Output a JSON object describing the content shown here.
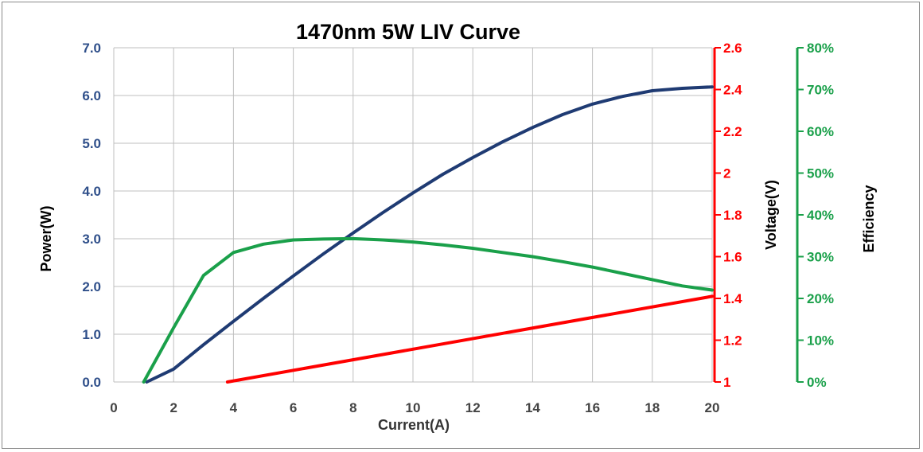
{
  "chart_data": {
    "type": "line",
    "title": "1470nm 5W LIV Curve",
    "xlabel": "Current(A)",
    "xlim": [
      0,
      20
    ],
    "xticks": [
      0,
      2,
      4,
      6,
      8,
      10,
      12,
      14,
      16,
      18,
      20
    ],
    "grid": true,
    "axes": {
      "left": {
        "label": "Power(W)",
        "ylim": [
          0,
          7
        ],
        "ticks": [
          "0.0",
          "1.0",
          "2.0",
          "3.0",
          "4.0",
          "5.0",
          "6.0",
          "7.0"
        ],
        "color": "#2f4f8a"
      },
      "right1": {
        "label": "Voltage(V)",
        "ylim": [
          1,
          2.6
        ],
        "ticks": [
          "1",
          "1.2",
          "1.4",
          "1.6",
          "1.8",
          "2",
          "2.2",
          "2.4",
          "2.6"
        ],
        "color": "#ff0000"
      },
      "right2": {
        "label": "Efficiency",
        "ylim": [
          0,
          80
        ],
        "ticks": [
          "0%",
          "10%",
          "20%",
          "30%",
          "40%",
          "50%",
          "60%",
          "70%",
          "80%"
        ],
        "color": "#1aa04a"
      }
    },
    "series": [
      {
        "axis": "left",
        "color": "#1f3b73",
        "x": [
          1.1,
          2,
          3,
          4,
          5,
          6,
          7,
          8,
          9,
          10,
          11,
          12,
          13,
          14,
          15,
          16,
          17,
          18,
          19,
          20
        ],
        "y": [
          0.0,
          0.27,
          0.78,
          1.27,
          1.75,
          2.22,
          2.68,
          3.12,
          3.55,
          3.96,
          4.35,
          4.7,
          5.03,
          5.33,
          5.6,
          5.82,
          5.98,
          6.1,
          6.15,
          6.18
        ]
      },
      {
        "axis": "right1",
        "color": "#ff0000",
        "x": [
          3.8,
          20
        ],
        "y": [
          1.0,
          1.41
        ]
      },
      {
        "axis": "right2",
        "color": "#1aa04a",
        "x": [
          1,
          2,
          3,
          4,
          5,
          6,
          7,
          8,
          9,
          10,
          11,
          12,
          13,
          14,
          15,
          16,
          17,
          18,
          19,
          20
        ],
        "y": [
          0,
          13,
          25.5,
          31,
          33,
          34,
          34.2,
          34.3,
          34,
          33.5,
          32.8,
          32,
          31,
          30,
          28.8,
          27.5,
          26,
          24.5,
          23,
          22
        ]
      }
    ]
  }
}
